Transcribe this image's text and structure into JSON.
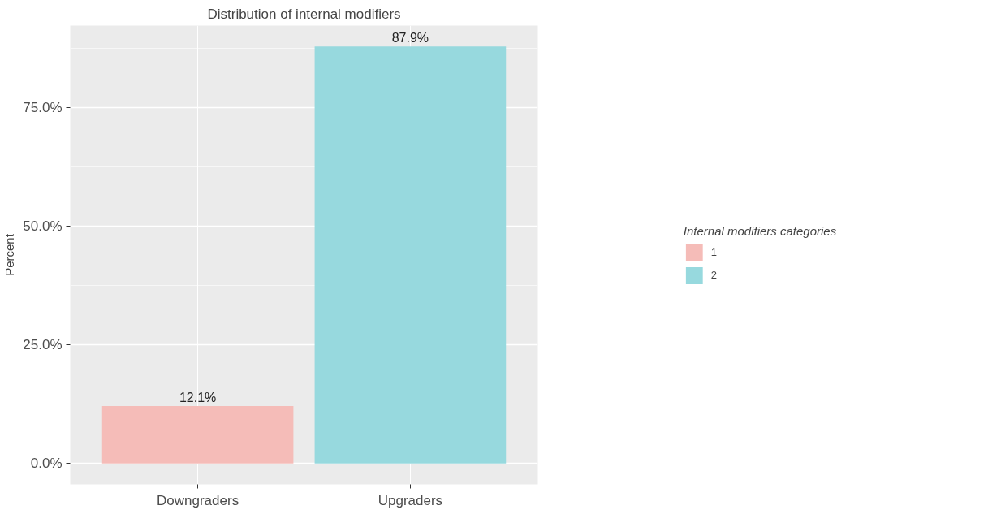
{
  "chart_data": {
    "type": "bar",
    "title": "Distribution of internal modifiers",
    "ylabel": "Percent",
    "legend_title": "Internal modifiers categories",
    "categories": [
      "Downgraders",
      "Upgraders"
    ],
    "series": [
      {
        "name": "1",
        "color": "#f5bcb8",
        "values": [
          12.1,
          null
        ],
        "value_labels": [
          "12.1%",
          null
        ]
      },
      {
        "name": "2",
        "color": "#97d9de",
        "values": [
          null,
          87.9
        ],
        "value_labels": [
          null,
          "87.9%"
        ]
      }
    ],
    "ylim": [
      -4.4,
      92.3
    ],
    "yticks": [
      {
        "value": 0,
        "label": "0.0%"
      },
      {
        "value": 25,
        "label": "25.0%"
      },
      {
        "value": 50,
        "label": "50.0%"
      },
      {
        "value": 75,
        "label": "75.0%"
      }
    ],
    "grid": true,
    "legend": "right"
  }
}
